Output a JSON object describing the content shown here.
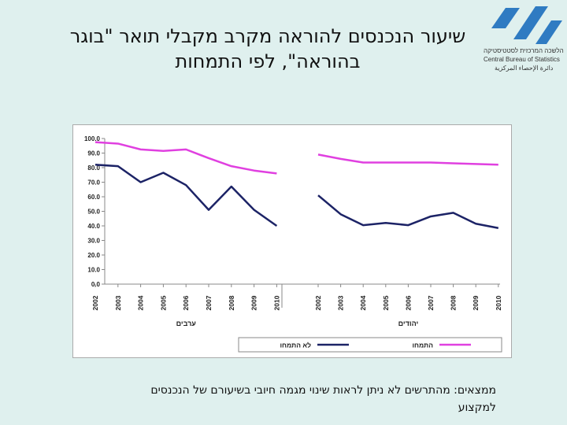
{
  "title_line1": "שיעור הנכנסים להוראה מקרב מקבלי תואר \"בוגר",
  "title_line2": "בהוראה\", לפי התמחות",
  "logo": {
    "name_he": "הלשכה המרכזית לסטטיסטיקה",
    "name_en": "Central Bureau of Statistics",
    "name_ar": "دائرة الإحصاء المركزية"
  },
  "finding_line1": "ממצאים: מהתרשים לא ניתן לראות שינוי מגמה חיובי בשיעורם של הנכנסים",
  "finding_line2": "למקצוע",
  "colors": {
    "no_specialization": "#1c2366",
    "specialization": "#e040e0"
  },
  "chart_data": {
    "type": "line",
    "ylim": [
      0,
      100
    ],
    "yticks": [
      "0.0",
      "10.0",
      "20.0",
      "30.0",
      "40.0",
      "50.0",
      "60.0",
      "70.0",
      "80.0",
      "90.0",
      "100.0"
    ],
    "groups": [
      {
        "label": "ערבים",
        "categories": [
          "2002",
          "2003",
          "2004",
          "2005",
          "2006",
          "2007",
          "2008",
          "2009",
          "2010"
        ],
        "series": [
          {
            "name": "התמחו",
            "values": [
              97.5,
              96.5,
              92.5,
              91.5,
              92.5,
              86.5,
              81,
              78,
              76
            ]
          },
          {
            "name": "לא התמחו",
            "values": [
              82,
              81,
              70,
              76.5,
              68,
              51,
              67,
              51,
              40
            ]
          }
        ]
      },
      {
        "label": "יהודים",
        "categories": [
          "2002",
          "2003",
          "2004",
          "2005",
          "2006",
          "2007",
          "2008",
          "2009",
          "2010"
        ],
        "series": [
          {
            "name": "התמחו",
            "values": [
              89,
              86,
              83.5,
              83.5,
              83.5,
              83.5,
              83,
              82.5,
              82
            ]
          },
          {
            "name": "לא התמחו",
            "values": [
              61,
              48,
              40.5,
              42,
              40.5,
              46.5,
              49,
              41.5,
              38.5
            ]
          }
        ]
      }
    ],
    "legend": [
      {
        "name": "התמחו"
      },
      {
        "name": "לא התמחו"
      }
    ],
    "legend_position": "bottom"
  }
}
